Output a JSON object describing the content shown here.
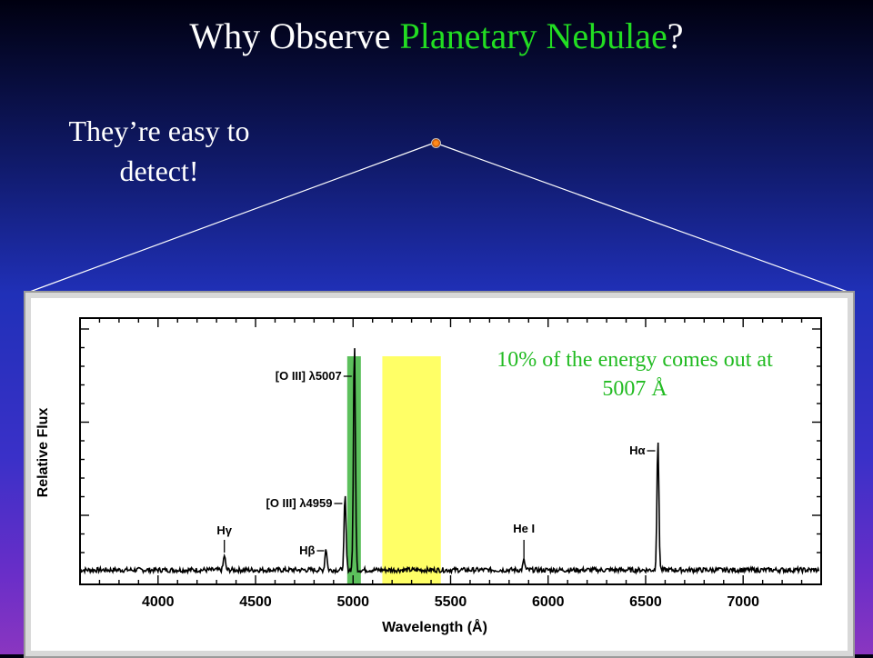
{
  "slide": {
    "title_prefix": "Why Observe ",
    "title_highlight": "Planetary Nebulae",
    "title_suffix": "?",
    "caption": "They’re easy to detect!",
    "energy_note": "10% of the energy comes out at 5007 Å"
  },
  "colors": {
    "highlight": "#22dd22",
    "note": "#22bb22",
    "band_green": "#5cc05c",
    "band_yellow": "#ffff66"
  },
  "chart_data": {
    "type": "line",
    "xlabel": "Wavelength (Å)",
    "ylabel": "Relative Flux",
    "xlim": [
      3600,
      7400
    ],
    "x_ticks": [
      "4000",
      "4500",
      "5000",
      "5500",
      "6000",
      "6500",
      "7000"
    ],
    "lines": [
      {
        "label": "Hγ",
        "wavelength": 4340,
        "flux": 0.06
      },
      {
        "label": "Hβ",
        "wavelength": 4861,
        "flux": 0.09
      },
      {
        "label": "[O III] λ4959",
        "wavelength": 4959,
        "flux": 0.3
      },
      {
        "label": "[O III] λ5007",
        "wavelength": 5007,
        "flux": 0.92
      },
      {
        "label": "He I",
        "wavelength": 5876,
        "flux": 0.04
      },
      {
        "label": "Hα",
        "wavelength": 6563,
        "flux": 0.52
      }
    ],
    "bands": [
      {
        "color": "green",
        "from": 4970,
        "to": 5040
      },
      {
        "color": "yellow",
        "from": 5150,
        "to": 5450
      }
    ]
  }
}
